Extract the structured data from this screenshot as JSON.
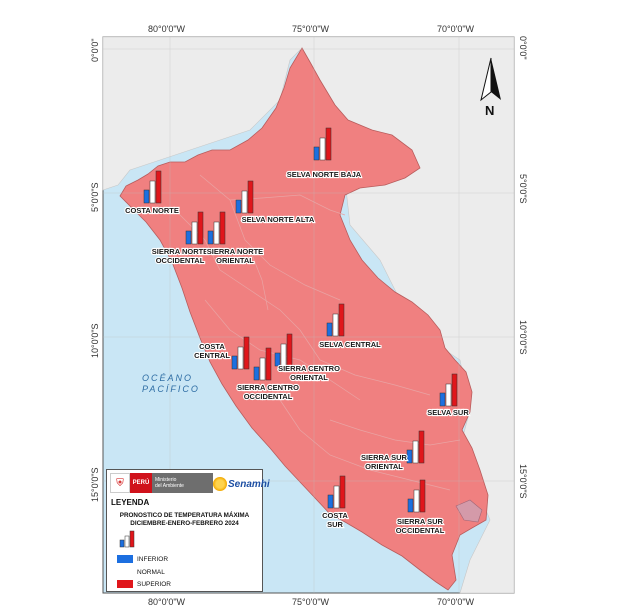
{
  "map": {
    "coords": {
      "top": [
        "80°0'0\"W",
        "75°0'0\"W",
        "70°0'0\"W"
      ],
      "bottom": [
        "80°0'0\"W",
        "75°0'0\"W",
        "70°0'0\"W"
      ],
      "left": [
        "0°0'0\"",
        "5°0'0\"S",
        "10°0'0\"S",
        "15°0'0\"S"
      ],
      "right": [
        "0°0'0\"",
        "5°0'0\"S",
        "10°0'0\"S",
        "15°0'0\"S"
      ]
    },
    "north_label": "N",
    "ocean_label_1": "OCÉANO",
    "ocean_label_2": "PACÍFICO",
    "colors": {
      "land": "#f08080",
      "water": "#c9e6f5",
      "inferior": "#1c6fe0",
      "normal": "#ffffff",
      "superior": "#e0161b"
    },
    "regions": [
      {
        "label": [
          "SELVA NORTE BAJA"
        ]
      },
      {
        "label": [
          "COSTA NORTE"
        ]
      },
      {
        "label": [
          "SELVA NORTE ALTA"
        ]
      },
      {
        "label": [
          "SIERRA NORTE",
          "OCCIDENTAL"
        ]
      },
      {
        "label": [
          "SIERRA NORTE",
          "ORIENTAL"
        ]
      },
      {
        "label": [
          "SELVA CENTRAL"
        ]
      },
      {
        "label": [
          "COSTA",
          "CENTRAL"
        ]
      },
      {
        "label": [
          "SIERRA CENTRO",
          "ORIENTAL"
        ]
      },
      {
        "label": [
          "SIERRA CENTRO",
          "OCCIDENTAL"
        ]
      },
      {
        "label": [
          "SELVA SUR"
        ]
      },
      {
        "label": [
          "SIERRA SUR",
          "ORIENTAL"
        ]
      },
      {
        "label": [
          "COSTA",
          "SUR"
        ]
      },
      {
        "label": [
          "SIERRA SUR",
          "OCCIDENTAL"
        ]
      }
    ]
  },
  "legend": {
    "logo_peru": "PERÚ",
    "logo_ministry": "Ministerio\ndel Ambiente",
    "logo_senamhi": "Senamhi",
    "title": "LEYENDA",
    "subtitle_1": "PRONOSTICO DE TEMPERATURA MÁXIMA",
    "subtitle_2": "DICIEMBRE-ENERO-FEBRERO 2024",
    "items": {
      "inferior": "INFERIOR",
      "normal": "NORMAL",
      "superior": "SUPERIOR"
    }
  }
}
